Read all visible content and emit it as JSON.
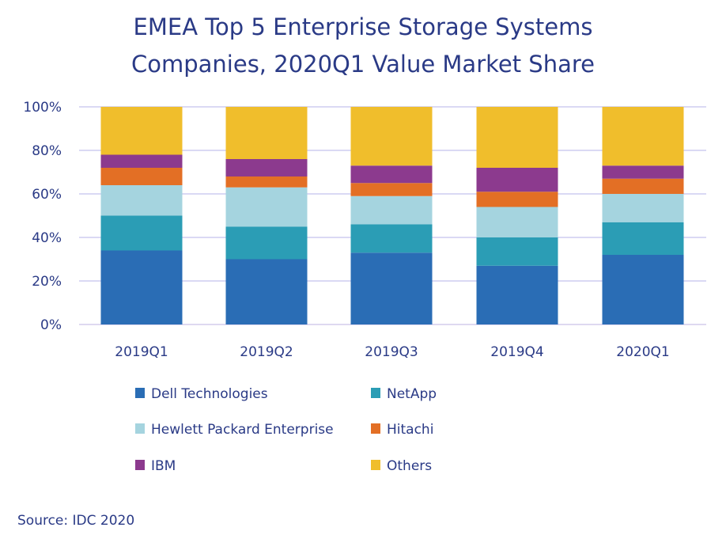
{
  "chart_data": {
    "type": "bar",
    "stacked": true,
    "title": "EMEA Top 5 Enterprise Storage Systems Companies, 2020Q1 Value Market Share",
    "title_lines": [
      "EMEA Top 5 Enterprise Storage Systems",
      "Companies, 2020Q1 Value Market Share"
    ],
    "categories": [
      "2019Q1",
      "2019Q2",
      "2019Q3",
      "2019Q4",
      "2020Q1"
    ],
    "ylim": [
      0,
      100
    ],
    "yticks": [
      "0%",
      "20%",
      "40%",
      "60%",
      "80%",
      "100%"
    ],
    "grid": true,
    "legend_position": "bottom",
    "series": [
      {
        "name": "Dell Technologies",
        "color": "#2a6db5",
        "values": [
          34,
          30,
          33,
          27,
          32
        ]
      },
      {
        "name": "NetApp",
        "color": "#2b9db5",
        "values": [
          16,
          15,
          13,
          13,
          15
        ]
      },
      {
        "name": "Hewlett Packard Enterprise",
        "color": "#a5d4df",
        "values": [
          14,
          18,
          13,
          14,
          13
        ]
      },
      {
        "name": "Hitachi",
        "color": "#e36f25",
        "values": [
          8,
          5,
          6,
          7,
          7
        ]
      },
      {
        "name": "IBM",
        "color": "#8c3a8e",
        "values": [
          6,
          8,
          8,
          11,
          6
        ]
      },
      {
        "name": "Others",
        "color": "#f0be2c",
        "values": [
          22,
          24,
          27,
          28,
          27
        ]
      }
    ],
    "source": "Source: IDC 2020"
  }
}
